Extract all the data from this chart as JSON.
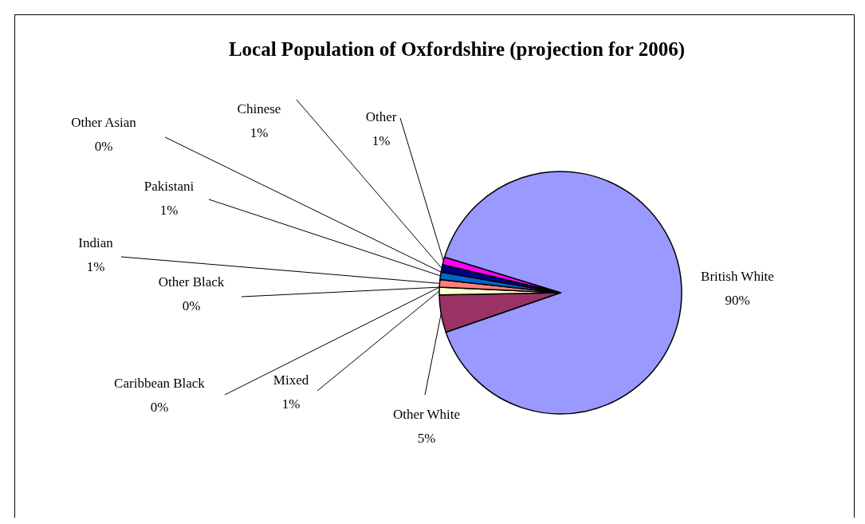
{
  "chart_data": {
    "type": "pie",
    "title": "Local Population of Oxfordshire (projection for 2006)",
    "categories": [
      "British White",
      "Other White",
      "Mixed",
      "Caribbean Black",
      "Other Black",
      "Indian",
      "Pakistani",
      "Other Asian",
      "Chinese",
      "Other"
    ],
    "values": [
      90,
      5,
      1,
      0,
      0,
      1,
      1,
      0,
      1,
      1
    ],
    "value_labels": [
      "90%",
      "5%",
      "1%",
      "0%",
      "0%",
      "1%",
      "1%",
      "0%",
      "1%",
      "1%"
    ],
    "colors": [
      "#9999ff",
      "#993366",
      "#ffffcc",
      "#ccffff",
      "#660066",
      "#ff8080",
      "#0066cc",
      "#ccccff",
      "#000080",
      "#ff00ff"
    ]
  }
}
